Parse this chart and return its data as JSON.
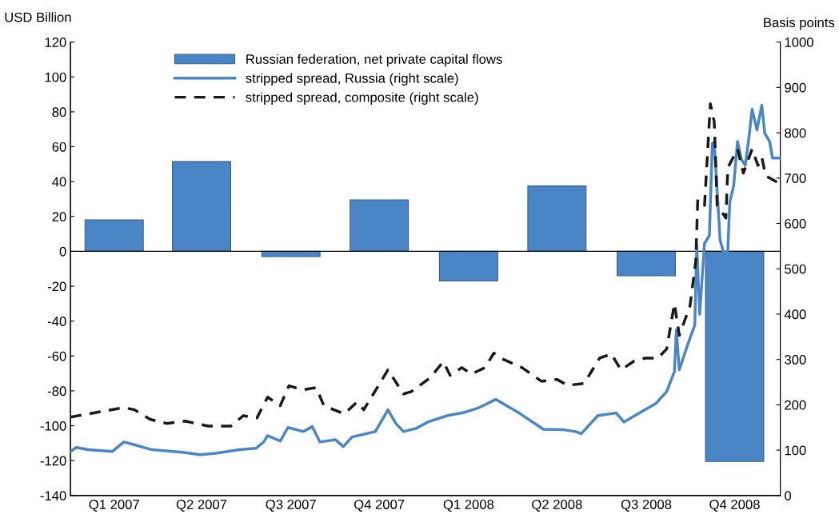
{
  "chart_data": {
    "type": "bar",
    "ylabel": "USD Billion",
    "y2label": "Basis points",
    "x": [
      "2007-02-15",
      "2007-05-16",
      "2007-08-16",
      "2007-11-15",
      "2008-02-15",
      "2008-05-16",
      "2008-08-16",
      "2008-11-15"
    ],
    "xlim": [
      "2007-01-01",
      "2009-01-01"
    ],
    "xticks": [
      {
        "value": "2007-02-15",
        "label": "Q1 2007"
      },
      {
        "value": "2007-05-16",
        "label": "Q2 2007"
      },
      {
        "value": "2007-08-16",
        "label": "Q3 2007"
      },
      {
        "value": "2007-11-15",
        "label": "Q4 2007"
      },
      {
        "value": "2008-02-15",
        "label": "Q1 2008"
      },
      {
        "value": "2008-05-16",
        "label": "Q2 2008"
      },
      {
        "value": "2008-08-16",
        "label": "Q3 2008"
      },
      {
        "value": "2008-11-15",
        "label": "Q4 2008"
      }
    ],
    "ylim": [
      -140,
      120
    ],
    "yticks": [
      -140,
      -120,
      -100,
      -80,
      -60,
      -40,
      -20,
      0,
      20,
      40,
      60,
      80,
      100,
      120
    ],
    "y2lim": [
      0,
      1000
    ],
    "y2ticks": [
      0,
      100,
      200,
      300,
      400,
      500,
      600,
      700,
      800,
      900,
      1000
    ],
    "legend": "top left",
    "grid": false,
    "ref_lines": [
      {
        "axis": "y",
        "value": 0,
        "color": "#000000",
        "line_style": "solid"
      }
    ],
    "series": [
      {
        "name": "Russian federation, net private capital flows",
        "color": "#4a86c5",
        "values": [
          18,
          51.5,
          -3,
          29.5,
          -17,
          37.5,
          -14,
          -120.5
        ]
      },
      {
        "name": "stripped spread, Russia (right scale)",
        "type": "line",
        "axis": "y2",
        "color": "#4a86c5",
        "line_style": "solid",
        "x": [
          "2007-01-01",
          "2007-01-07",
          "2007-01-19",
          "2007-02-13",
          "2007-02-25",
          "2007-03-06",
          "2007-03-26",
          "2007-04-28",
          "2007-05-14",
          "2007-05-31",
          "2007-06-24",
          "2007-07-11",
          "2007-07-19",
          "2007-07-23",
          "2007-08-05",
          "2007-08-13",
          "2007-08-29",
          "2007-09-07",
          "2007-09-15",
          "2007-10-01",
          "2007-10-09",
          "2007-10-18",
          "2007-11-11",
          "2007-11-24",
          "2007-12-02",
          "2007-12-10",
          "2007-12-23",
          "2008-01-04",
          "2008-01-24",
          "2008-02-10",
          "2008-02-26",
          "2008-03-14",
          "2008-04-07",
          "2008-05-02",
          "2008-05-23",
          "2008-06-04",
          "2008-06-10",
          "2008-06-27",
          "2008-07-16",
          "2008-07-24",
          "2008-08-09",
          "2008-08-26",
          "2008-09-06",
          "2008-09-14",
          "2008-09-16",
          "2008-09-19",
          "2008-09-28",
          "2008-10-05",
          "2008-10-07",
          "2008-10-10",
          "2008-10-15",
          "2008-10-20",
          "2008-10-23",
          "2008-10-25",
          "2008-10-31",
          "2008-11-04",
          "2008-11-08",
          "2008-11-10",
          "2008-11-14",
          "2008-11-18",
          "2008-11-22",
          "2008-11-26",
          "2008-11-30",
          "2008-12-03",
          "2008-12-08",
          "2008-12-13",
          "2008-12-16",
          "2008-12-21",
          "2008-12-24",
          "2008-12-31"
        ],
        "values": [
          97,
          106,
          101,
          97,
          118,
          113,
          101,
          95,
          90,
          93,
          101,
          104,
          118,
          132,
          120,
          150,
          141,
          152,
          118,
          123,
          108,
          129,
          141,
          189,
          159,
          141,
          148,
          162,
          176,
          183,
          194,
          212,
          182,
          146,
          145,
          141,
          136,
          176,
          182,
          162,
          182,
          203,
          229,
          273,
          365,
          277,
          335,
          376,
          552,
          400,
          556,
          573,
          776,
          780,
          564,
          533,
          540,
          647,
          683,
          781,
          741,
          728,
          794,
          852,
          806,
          861,
          799,
          781,
          744,
          744
        ]
      },
      {
        "name": "stripped spread, composite (right scale)",
        "type": "line",
        "axis": "y2",
        "color": "#1a1a1a",
        "line_style": "dashed",
        "x": [
          "2007-01-01",
          "2007-02-25",
          "2007-03-08",
          "2007-03-24",
          "2007-04-10",
          "2007-04-29",
          "2007-05-23",
          "2007-06-15",
          "2007-06-28",
          "2007-07-12",
          "2007-07-23",
          "2007-08-05",
          "2007-08-14",
          "2007-08-28",
          "2007-09-11",
          "2007-09-19",
          "2007-10-10",
          "2007-10-23",
          "2007-10-30",
          "2007-11-24",
          "2007-12-10",
          "2007-12-18",
          "2008-01-06",
          "2008-01-20",
          "2008-01-27",
          "2008-02-08",
          "2008-02-18",
          "2008-03-03",
          "2008-03-12",
          "2008-03-22",
          "2008-04-10",
          "2008-04-30",
          "2008-05-16",
          "2008-05-27",
          "2008-06-13",
          "2008-06-29",
          "2008-07-11",
          "2008-07-21",
          "2008-08-03",
          "2008-08-15",
          "2008-08-28",
          "2008-09-06",
          "2008-09-14",
          "2008-09-19",
          "2008-09-30",
          "2008-10-06",
          "2008-10-08",
          "2008-10-15",
          "2008-10-21",
          "2008-10-25",
          "2008-10-28",
          "2008-11-06",
          "2008-11-08",
          "2008-11-18",
          "2008-11-24",
          "2008-12-03",
          "2008-12-09",
          "2008-12-13",
          "2008-12-17",
          "2008-12-27",
          "2008-12-31"
        ],
        "values": [
          173,
          194,
          189,
          168,
          159,
          164,
          153,
          153,
          176,
          171,
          217,
          198,
          242,
          233,
          238,
          198,
          180,
          206,
          189,
          277,
          224,
          229,
          259,
          295,
          265,
          282,
          268,
          282,
          314,
          300,
          282,
          252,
          256,
          243,
          247,
          303,
          312,
          277,
          296,
          303,
          303,
          323,
          423,
          353,
          418,
          517,
          653,
          640,
          864,
          824,
          640,
          612,
          723,
          764,
          711,
          764,
          728,
          746,
          705,
          693,
          691
        ]
      }
    ]
  }
}
